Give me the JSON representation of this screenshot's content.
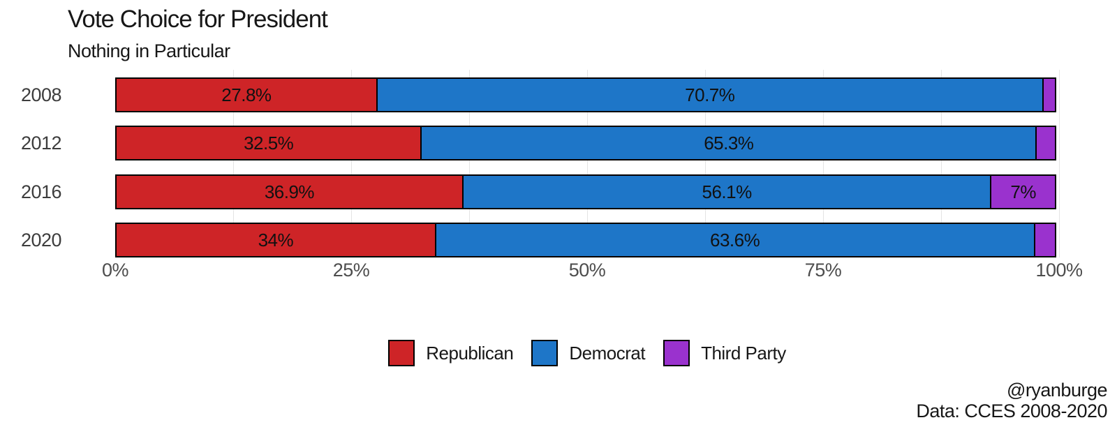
{
  "title": "Vote Choice for President",
  "subtitle": "Nothing in Particular",
  "attribution": {
    "line1": "@ryanburge",
    "line2": "Data: CCES 2008-2020"
  },
  "colors": {
    "republican": "#ce2427",
    "democrat": "#1e76c8",
    "third_party": "#9a32ce",
    "gridline": "#e4e4e4",
    "axis_text": "#4d4d4d",
    "bar_border": "#000000"
  },
  "chart_data": {
    "type": "bar",
    "orientation": "horizontal-stacked",
    "title": "Vote Choice for President",
    "subtitle": "Nothing in Particular",
    "categories": [
      "2008",
      "2012",
      "2016",
      "2020"
    ],
    "series": [
      {
        "name": "Republican",
        "color": "#ce2427",
        "values": [
          27.8,
          32.5,
          36.9,
          34.0
        ],
        "labels": [
          "27.8%",
          "32.5%",
          "36.9%",
          "34%"
        ]
      },
      {
        "name": "Democrat",
        "color": "#1e76c8",
        "values": [
          70.7,
          65.3,
          56.1,
          63.6
        ],
        "labels": [
          "70.7%",
          "65.3%",
          "56.1%",
          "63.6%"
        ]
      },
      {
        "name": "Third Party",
        "color": "#9a32ce",
        "values": [
          1.5,
          2.2,
          7.0,
          2.4
        ],
        "labels": [
          "",
          "",
          "7%",
          ""
        ]
      }
    ],
    "xlabel": "",
    "ylabel": "",
    "xlim": [
      0,
      100
    ],
    "x_tick_values": [
      0,
      25,
      50,
      75,
      100
    ],
    "x_tick_labels": [
      "0%",
      "25%",
      "50%",
      "75%",
      "100%"
    ],
    "grid_x_values": [
      12.5,
      25,
      37.5,
      50,
      62.5,
      75,
      87.5,
      100
    ],
    "grid": "vertical",
    "legend_position": "bottom"
  }
}
